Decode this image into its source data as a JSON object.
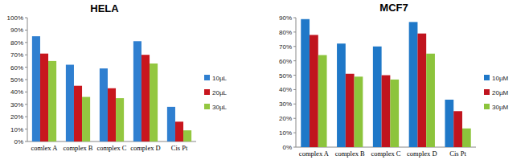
{
  "chart_data": [
    {
      "type": "bar",
      "title": "HELA",
      "categories": [
        "comlex A",
        "complex B",
        "complex C",
        "complex D",
        "Cis Pt"
      ],
      "series": [
        {
          "name": "10µL",
          "color": "#2f7fd0",
          "values": [
            85,
            62,
            59,
            81,
            28
          ]
        },
        {
          "name": "20µL",
          "color": "#c8161e",
          "values": [
            71,
            45,
            43,
            70,
            16
          ]
        },
        {
          "name": "30µL",
          "color": "#93c740",
          "values": [
            65,
            36,
            35,
            63,
            9
          ]
        }
      ],
      "ylim": [
        0,
        100
      ],
      "yticks": [
        {
          "value": 0,
          "label": "0%"
        },
        {
          "value": 10,
          "label": "10%"
        },
        {
          "value": 20,
          "label": "20%"
        },
        {
          "value": 30,
          "label": "30%"
        },
        {
          "value": 40,
          "label": "40%"
        },
        {
          "value": 50,
          "label": "50%"
        },
        {
          "value": 60,
          "label": "60%"
        },
        {
          "value": 70,
          "label": "70%"
        },
        {
          "value": 80,
          "label": "80%"
        },
        {
          "value": 90,
          "label": "90%"
        },
        {
          "value": 100,
          "label": "100%"
        }
      ],
      "grid": false,
      "legend": "right"
    },
    {
      "type": "bar",
      "title": "MCF7",
      "categories": [
        "complex A",
        "complex B",
        "complex C",
        "complex D",
        "Cis Pt"
      ],
      "series": [
        {
          "name": "10µM",
          "color": "#1f78c8",
          "values": [
            89,
            72,
            70,
            87,
            33
          ]
        },
        {
          "name": "20µM",
          "color": "#c0141e",
          "values": [
            78,
            51,
            50,
            79,
            25
          ]
        },
        {
          "name": "30µM",
          "color": "#8cc43c",
          "values": [
            64,
            49,
            47,
            65,
            13
          ]
        }
      ],
      "ylim": [
        0,
        90
      ],
      "yticks": [
        {
          "value": 0,
          "label": "0%"
        },
        {
          "value": 10,
          "label": "10%"
        },
        {
          "value": 20,
          "label": "20%"
        },
        {
          "value": 30,
          "label": "30%"
        },
        {
          "value": 40,
          "label": "40%"
        },
        {
          "value": 50,
          "label": "50%"
        },
        {
          "value": 60,
          "label": "60%"
        },
        {
          "value": 70,
          "label": "70%"
        },
        {
          "value": 80,
          "label": "80%"
        },
        {
          "value": 90,
          "label": "90%"
        }
      ],
      "grid": false,
      "legend": "right"
    }
  ]
}
